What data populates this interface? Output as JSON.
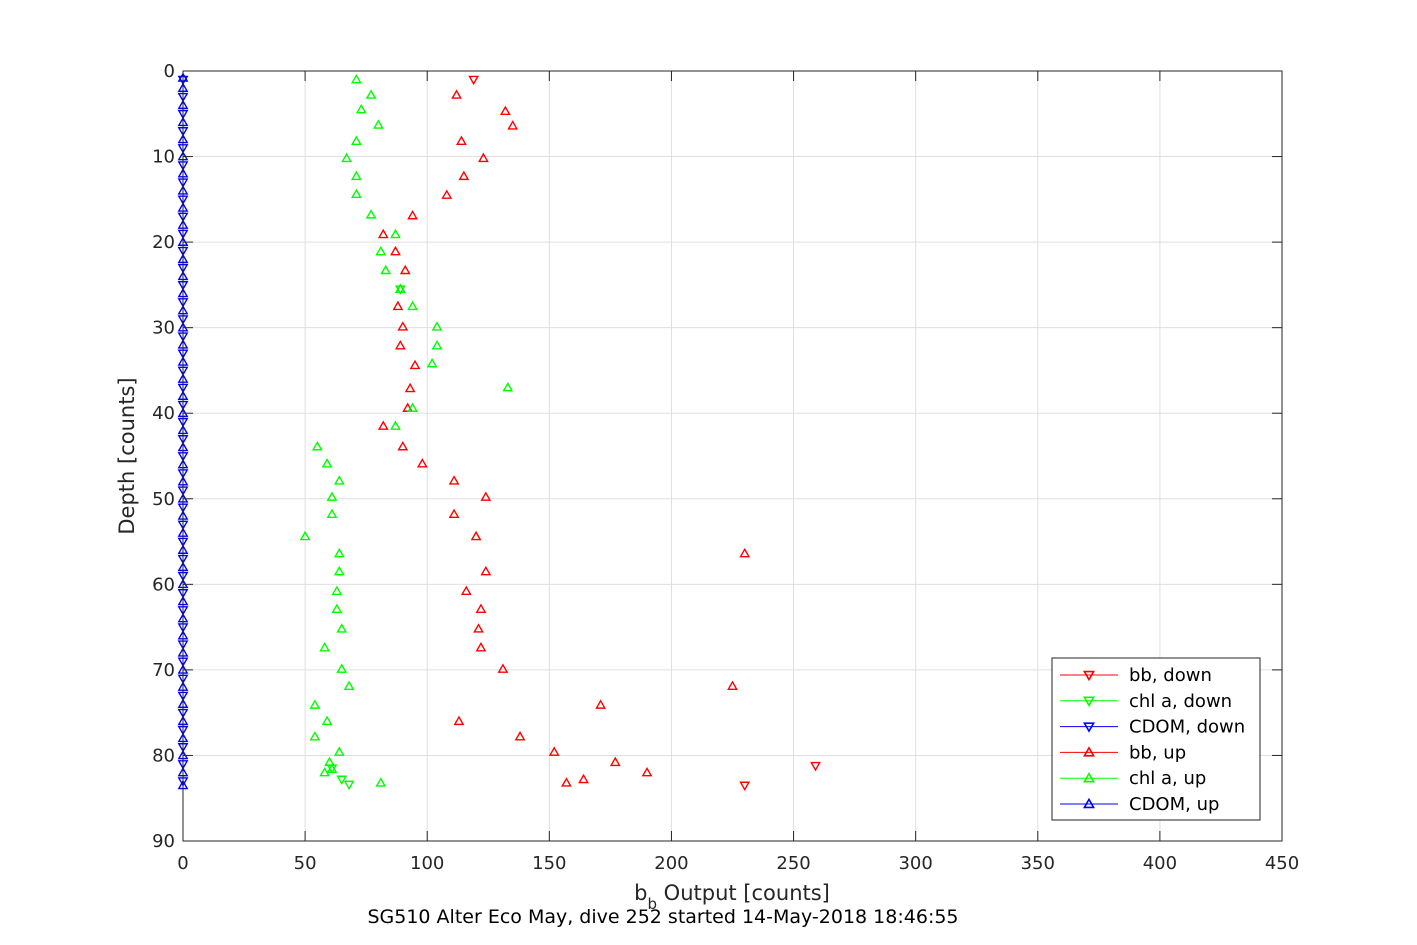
{
  "chart_data": {
    "type": "scatter",
    "title": "SG510 Alter Eco May, dive 252 started 14-May-2018 18:46:55",
    "xlabel_main": "b",
    "xlabel_sub": "b",
    "xlabel_rest": " Output [counts]",
    "ylabel": "Depth [counts]",
    "xlim": [
      0,
      450
    ],
    "ylim": [
      0,
      90
    ],
    "y_reversed": true,
    "grid": true,
    "legend_placement": "bottom-right",
    "xticks": [
      0,
      50,
      100,
      150,
      200,
      250,
      300,
      350,
      400,
      450
    ],
    "yticks": [
      0,
      10,
      20,
      30,
      40,
      50,
      60,
      70,
      80,
      90
    ],
    "series": [
      {
        "name": "bb, down",
        "color": "#ff0000",
        "marker": "triangle-down",
        "points": [
          [
            119,
            1
          ],
          [
            259,
            81.2
          ],
          [
            230,
            83.5
          ]
        ]
      },
      {
        "name": "chl a, down",
        "color": "#00ff00",
        "marker": "triangle-down",
        "points": [
          [
            89,
            25.5
          ],
          [
            61,
            81.5
          ],
          [
            65,
            82.8
          ],
          [
            68,
            83.4
          ]
        ]
      },
      {
        "name": "CDOM, down",
        "color": "#0000ff",
        "marker": "triangle-down",
        "points": [
          [
            0,
            1
          ],
          [
            0,
            3
          ],
          [
            0,
            5
          ],
          [
            0,
            7
          ],
          [
            0,
            9
          ],
          [
            0,
            11
          ],
          [
            0,
            13
          ],
          [
            0,
            15
          ],
          [
            0,
            17
          ],
          [
            0,
            19
          ],
          [
            0,
            21
          ],
          [
            0,
            23
          ],
          [
            0,
            25
          ],
          [
            0,
            27
          ],
          [
            0,
            29
          ],
          [
            0,
            31
          ],
          [
            0,
            33
          ],
          [
            0,
            35
          ],
          [
            0,
            37
          ],
          [
            0,
            39
          ],
          [
            0,
            41
          ],
          [
            0,
            43
          ],
          [
            0,
            45
          ],
          [
            0,
            47
          ],
          [
            0,
            49
          ],
          [
            0,
            51
          ],
          [
            0,
            53
          ],
          [
            0,
            55
          ],
          [
            0,
            57
          ],
          [
            0,
            59
          ],
          [
            0,
            61
          ],
          [
            0,
            63
          ],
          [
            0,
            65
          ],
          [
            0,
            67
          ],
          [
            0,
            69
          ],
          [
            0,
            71
          ],
          [
            0,
            73
          ],
          [
            0,
            75
          ],
          [
            0,
            77
          ],
          [
            0,
            79
          ],
          [
            0,
            81
          ],
          [
            0,
            83
          ]
        ]
      },
      {
        "name": "bb, up",
        "color": "#ff0000",
        "marker": "triangle-up",
        "points": [
          [
            112,
            2.8
          ],
          [
            132,
            4.7
          ],
          [
            135,
            6.4
          ],
          [
            114,
            8.2
          ],
          [
            123,
            10.2
          ],
          [
            115,
            12.3
          ],
          [
            108,
            14.5
          ],
          [
            94,
            16.9
          ],
          [
            82,
            19.1
          ],
          [
            87,
            21.1
          ],
          [
            91,
            23.3
          ],
          [
            89,
            25.5
          ],
          [
            88,
            27.5
          ],
          [
            90,
            29.9
          ],
          [
            89,
            32.1
          ],
          [
            95,
            34.4
          ],
          [
            93,
            37.1
          ],
          [
            92,
            39.4
          ],
          [
            82,
            41.5
          ],
          [
            90,
            43.9
          ],
          [
            98,
            45.9
          ],
          [
            111,
            47.9
          ],
          [
            124,
            49.8
          ],
          [
            111,
            51.8
          ],
          [
            120,
            54.4
          ],
          [
            230,
            56.4
          ],
          [
            124,
            58.5
          ],
          [
            116,
            60.8
          ],
          [
            122,
            62.9
          ],
          [
            121,
            65.2
          ],
          [
            122,
            67.4
          ],
          [
            131,
            69.9
          ],
          [
            225,
            71.9
          ],
          [
            171,
            74.1
          ],
          [
            113,
            76.0
          ],
          [
            138,
            77.8
          ],
          [
            152,
            79.6
          ],
          [
            177,
            80.8
          ],
          [
            190,
            82.0
          ],
          [
            164,
            82.8
          ],
          [
            157,
            83.2
          ]
        ]
      },
      {
        "name": "chl a, up",
        "color": "#00ff00",
        "marker": "triangle-up",
        "points": [
          [
            71,
            1.0
          ],
          [
            77,
            2.8
          ],
          [
            73,
            4.5
          ],
          [
            80,
            6.3
          ],
          [
            71,
            8.2
          ],
          [
            67,
            10.2
          ],
          [
            71,
            12.3
          ],
          [
            71,
            14.4
          ],
          [
            77,
            16.8
          ],
          [
            87,
            19.1
          ],
          [
            81,
            21.1
          ],
          [
            83,
            23.3
          ],
          [
            89,
            25.5
          ],
          [
            94,
            27.5
          ],
          [
            104,
            29.9
          ],
          [
            104,
            32.1
          ],
          [
            102,
            34.2
          ],
          [
            133,
            37.0
          ],
          [
            94,
            39.4
          ],
          [
            87,
            41.5
          ],
          [
            55,
            43.9
          ],
          [
            59,
            45.9
          ],
          [
            64,
            47.9
          ],
          [
            61,
            49.8
          ],
          [
            61,
            51.8
          ],
          [
            50,
            54.4
          ],
          [
            64,
            56.4
          ],
          [
            64,
            58.5
          ],
          [
            63,
            60.8
          ],
          [
            63,
            62.9
          ],
          [
            65,
            65.2
          ],
          [
            58,
            67.4
          ],
          [
            65,
            69.9
          ],
          [
            68,
            71.9
          ],
          [
            54,
            74.1
          ],
          [
            59,
            76.0
          ],
          [
            54,
            77.8
          ],
          [
            64,
            79.6
          ],
          [
            60,
            80.8
          ],
          [
            61,
            81.6
          ],
          [
            58,
            82.0
          ],
          [
            81,
            83.2
          ]
        ]
      },
      {
        "name": "CDOM, up",
        "color": "#0000ff",
        "marker": "triangle-up",
        "points": [
          [
            0,
            0.8
          ],
          [
            0,
            2
          ],
          [
            0,
            4
          ],
          [
            0,
            6
          ],
          [
            0,
            8
          ],
          [
            0,
            10
          ],
          [
            0,
            12
          ],
          [
            0,
            14
          ],
          [
            0,
            16
          ],
          [
            0,
            18
          ],
          [
            0,
            20
          ],
          [
            0,
            22
          ],
          [
            0,
            24
          ],
          [
            0,
            26
          ],
          [
            0,
            28
          ],
          [
            0,
            30
          ],
          [
            0,
            32
          ],
          [
            0,
            34
          ],
          [
            0,
            36
          ],
          [
            0,
            38
          ],
          [
            0,
            40
          ],
          [
            0,
            42
          ],
          [
            0,
            44
          ],
          [
            0,
            46
          ],
          [
            0,
            48
          ],
          [
            0,
            50
          ],
          [
            0,
            52
          ],
          [
            0,
            54
          ],
          [
            0,
            56
          ],
          [
            0,
            58
          ],
          [
            0,
            60
          ],
          [
            0,
            62
          ],
          [
            0,
            64
          ],
          [
            0,
            66
          ],
          [
            0,
            68
          ],
          [
            0,
            70
          ],
          [
            0,
            72
          ],
          [
            0,
            74
          ],
          [
            0,
            76
          ],
          [
            0,
            78
          ],
          [
            0,
            80
          ],
          [
            0,
            82
          ],
          [
            0,
            83.5
          ]
        ]
      }
    ]
  }
}
